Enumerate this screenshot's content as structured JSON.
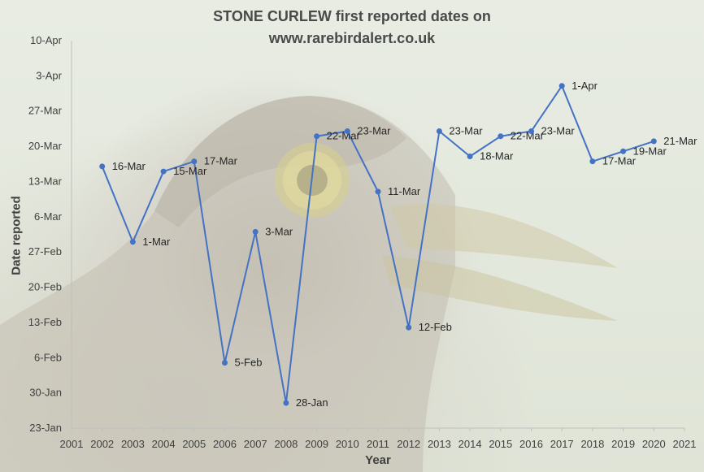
{
  "chart_data": {
    "type": "line",
    "title_line1": "STONE CURLEW first reported dates on",
    "title_line2": "www.rarebirdalert.co.uk",
    "xlabel": "Year",
    "ylabel": "Date reported",
    "x_ticks": [
      "2001",
      "2002",
      "2003",
      "2004",
      "2005",
      "2006",
      "2007",
      "2008",
      "2009",
      "2010",
      "2011",
      "2012",
      "2013",
      "2014",
      "2015",
      "2016",
      "2017",
      "2018",
      "2019",
      "2020",
      "2021"
    ],
    "xlim": [
      2001,
      2021
    ],
    "y_ticks": [
      {
        "label": "23-Jan",
        "day": 23
      },
      {
        "label": "30-Jan",
        "day": 30
      },
      {
        "label": "6-Feb",
        "day": 37
      },
      {
        "label": "13-Feb",
        "day": 44
      },
      {
        "label": "20-Feb",
        "day": 51
      },
      {
        "label": "27-Feb",
        "day": 58
      },
      {
        "label": "6-Mar",
        "day": 65
      },
      {
        "label": "13-Mar",
        "day": 72
      },
      {
        "label": "20-Mar",
        "day": 79
      },
      {
        "label": "27-Mar",
        "day": 86
      },
      {
        "label": "3-Apr",
        "day": 93
      },
      {
        "label": "10-Apr",
        "day": 100
      }
    ],
    "ylim_day_of_year": [
      23,
      100
    ],
    "series": [
      {
        "name": "First reported date",
        "color": "#4472c4",
        "points": [
          {
            "year": 2002,
            "day": 75,
            "label": "16-Mar"
          },
          {
            "year": 2003,
            "day": 60,
            "label": "1-Mar"
          },
          {
            "year": 2004,
            "day": 74,
            "label": "15-Mar"
          },
          {
            "year": 2005,
            "day": 76,
            "label": "17-Mar"
          },
          {
            "year": 2006,
            "day": 36,
            "label": "5-Feb"
          },
          {
            "year": 2007,
            "day": 62,
            "label": "3-Mar"
          },
          {
            "year": 2008,
            "day": 28,
            "label": "28-Jan"
          },
          {
            "year": 2009,
            "day": 81,
            "label": "22-Mar"
          },
          {
            "year": 2010,
            "day": 82,
            "label": "23-Mar"
          },
          {
            "year": 2011,
            "day": 70,
            "label": "11-Mar"
          },
          {
            "year": 2012,
            "day": 43,
            "label": "12-Feb"
          },
          {
            "year": 2013,
            "day": 82,
            "label": "23-Mar"
          },
          {
            "year": 2014,
            "day": 77,
            "label": "18-Mar"
          },
          {
            "year": 2015,
            "day": 81,
            "label": "22-Mar"
          },
          {
            "year": 2016,
            "day": 82,
            "label": "23-Mar"
          },
          {
            "year": 2017,
            "day": 91,
            "label": "1-Apr"
          },
          {
            "year": 2018,
            "day": 76,
            "label": "17-Mar"
          },
          {
            "year": 2019,
            "day": 78,
            "label": "19-Mar"
          },
          {
            "year": 2020,
            "day": 80,
            "label": "21-Mar"
          }
        ]
      }
    ],
    "grid": false,
    "background": "stone curlew photograph"
  }
}
